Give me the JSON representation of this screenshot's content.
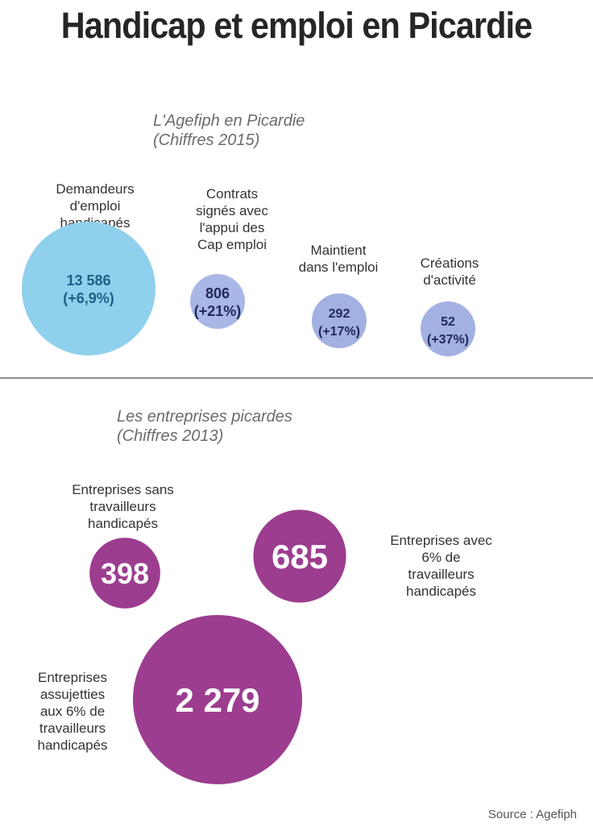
{
  "title": "Handicap et emploi en Picardie",
  "source": "Source : Agefiph",
  "chart_data": [
    {
      "type": "bubble",
      "title": "L'Agefiph en Picardie\n(Chiffres 2015)",
      "color": "#9ec7ea",
      "items": [
        {
          "label": "Demandeurs\nd'emploi\nhandicapés",
          "value": 13586,
          "value_text": "13 586",
          "change_text": "(+6,9%)",
          "fill": "#8fd0ec"
        },
        {
          "label": "Contrats\nsignés avec\nl'appui des\nCap emploi",
          "value": 806,
          "value_text": "806",
          "change_text": "(+21%)",
          "fill": "#a9b7e6"
        },
        {
          "label": "Maintient\ndans l'emploi",
          "value": 292,
          "value_text": "292",
          "change_text": "(+17%)",
          "fill": "#a3b1e2"
        },
        {
          "label": "Créations\nd'activité",
          "value": 52,
          "value_text": "52",
          "change_text": "(+37%)",
          "fill": "#a3b1e2"
        }
      ]
    },
    {
      "type": "bubble",
      "title": "Les entreprises picardes\n(Chiffres 2013)",
      "color": "#9c3d8f",
      "items": [
        {
          "label": "Entreprises sans\ntravailleurs\nhandicapés",
          "value": 398,
          "value_text": "398"
        },
        {
          "label": "Entreprises avec\n6% de\ntravailleurs\nhandicapés",
          "value": 685,
          "value_text": "685"
        },
        {
          "label": "Entreprises\nassujetties\naux 6% de\ntravailleurs\nhandicapés",
          "value": 2279,
          "value_text": "2 279"
        }
      ]
    }
  ]
}
